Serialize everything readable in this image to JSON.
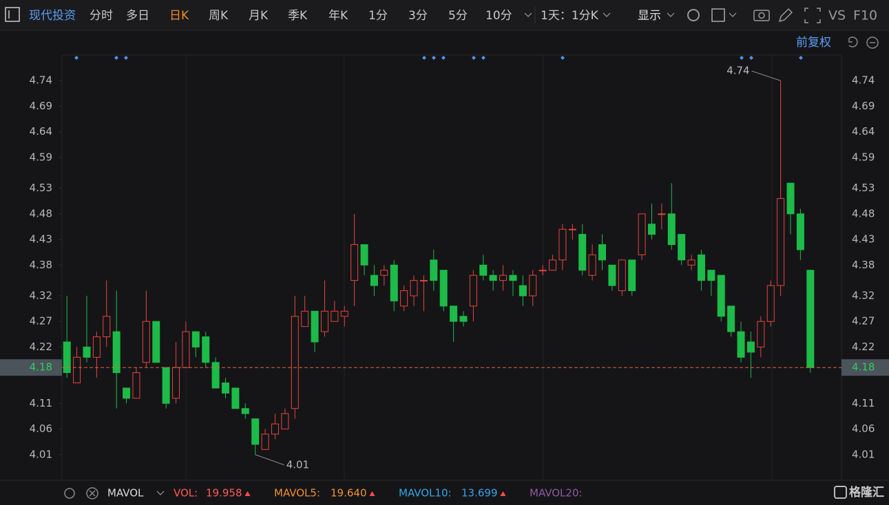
{
  "toolbar": {
    "stock": "现代投资",
    "periods": [
      "分时",
      "多日",
      "日K",
      "周K",
      "月K",
      "季K",
      "年K",
      "1分",
      "3分",
      "5分",
      "10分"
    ],
    "interval": "1天：1分K",
    "display": "显示",
    "vs": "VS",
    "f10": "F10"
  },
  "adjust": "前复权",
  "chart_data": {
    "type": "candlestick",
    "open": [
      4.23,
      4.15,
      4.22,
      4.2,
      4.24,
      4.25,
      4.14,
      4.12,
      4.19,
      4.27,
      4.18,
      4.12,
      4.18,
      4.25,
      4.24,
      4.19,
      4.15,
      4.14,
      4.1,
      4.08,
      4.02,
      4.05,
      4.06,
      4.1,
      4.26,
      4.29,
      4.25,
      4.27,
      4.28,
      4.35,
      4.42,
      4.36,
      4.36,
      4.38,
      4.3,
      4.32,
      4.35,
      4.39,
      4.37,
      4.3,
      4.28,
      4.3,
      4.38,
      4.36,
      4.35,
      4.36,
      4.34,
      4.32,
      4.37,
      4.37,
      4.39,
      4.45,
      4.44,
      4.36,
      4.42,
      4.38,
      4.33,
      4.39,
      4.4,
      4.46,
      4.48,
      4.48,
      4.44,
      4.38,
      4.4,
      4.37,
      4.36,
      4.3,
      4.25,
      4.23,
      4.22,
      4.27,
      4.34,
      4.54,
      4.48,
      4.37
    ],
    "high": [
      4.32,
      4.22,
      4.32,
      4.25,
      4.35,
      4.33,
      4.14,
      4.18,
      4.33,
      4.27,
      4.18,
      4.23,
      4.27,
      4.25,
      4.25,
      4.2,
      4.16,
      4.14,
      4.11,
      4.08,
      4.06,
      4.09,
      4.1,
      4.32,
      4.32,
      4.29,
      4.35,
      4.31,
      4.3,
      4.48,
      4.42,
      4.38,
      4.38,
      4.39,
      4.34,
      4.36,
      4.36,
      4.41,
      4.37,
      4.3,
      4.29,
      4.37,
      4.4,
      4.37,
      4.38,
      4.37,
      4.36,
      4.37,
      4.38,
      4.4,
      4.46,
      4.46,
      4.46,
      4.42,
      4.44,
      4.38,
      4.39,
      4.39,
      4.48,
      4.5,
      4.5,
      4.54,
      4.44,
      4.4,
      4.41,
      4.37,
      4.36,
      4.3,
      4.27,
      4.25,
      4.28,
      4.35,
      4.74,
      4.54,
      4.49,
      4.37
    ],
    "low": [
      4.16,
      4.15,
      4.19,
      4.16,
      4.22,
      4.1,
      4.11,
      4.12,
      4.18,
      4.19,
      4.1,
      4.11,
      4.18,
      4.2,
      4.18,
      4.14,
      4.12,
      4.1,
      4.08,
      4.01,
      4.02,
      4.04,
      4.06,
      4.08,
      4.26,
      4.21,
      4.24,
      4.27,
      4.26,
      4.3,
      4.36,
      4.32,
      4.34,
      4.29,
      4.29,
      4.3,
      4.29,
      4.33,
      4.29,
      4.23,
      4.26,
      4.27,
      4.35,
      4.33,
      4.33,
      4.32,
      4.3,
      4.3,
      4.36,
      4.37,
      4.37,
      4.43,
      4.36,
      4.35,
      4.37,
      4.33,
      4.32,
      4.32,
      4.39,
      4.43,
      4.45,
      4.41,
      4.38,
      4.37,
      4.33,
      4.32,
      4.27,
      4.24,
      4.19,
      4.16,
      4.2,
      4.26,
      4.32,
      4.44,
      4.39,
      4.17
    ],
    "close": [
      4.17,
      4.2,
      4.2,
      4.24,
      4.28,
      4.17,
      4.12,
      4.17,
      4.27,
      4.19,
      4.11,
      4.18,
      4.25,
      4.22,
      4.19,
      4.14,
      4.13,
      4.1,
      4.09,
      4.03,
      4.05,
      4.07,
      4.09,
      4.28,
      4.29,
      4.23,
      4.29,
      4.29,
      4.29,
      4.42,
      4.38,
      4.34,
      4.37,
      4.31,
      4.33,
      4.35,
      4.35,
      4.35,
      4.3,
      4.27,
      4.27,
      4.36,
      4.36,
      4.35,
      4.36,
      4.35,
      4.32,
      4.36,
      4.37,
      4.39,
      4.45,
      4.45,
      4.37,
      4.4,
      4.39,
      4.34,
      4.39,
      4.33,
      4.48,
      4.44,
      4.48,
      4.42,
      4.39,
      4.39,
      4.35,
      4.35,
      4.28,
      4.25,
      4.2,
      4.21,
      4.27,
      4.34,
      4.51,
      4.48,
      4.41,
      4.18
    ],
    "up_color": "#e8453c",
    "down_color": "#1dbb48",
    "ylim": [
      3.96,
      4.79
    ],
    "yticks": [
      4.01,
      4.06,
      4.11,
      4.22,
      4.27,
      4.32,
      4.38,
      4.43,
      4.48,
      4.53,
      4.59,
      4.64,
      4.69,
      4.74
    ],
    "last_price": 4.18,
    "max_label": 4.74,
    "min_label": 4.01
  },
  "indicator": {
    "name": "MAVOL",
    "items": [
      {
        "name": "VOL:",
        "value": "19.958",
        "color": "#ff5a52"
      },
      {
        "name": "MAVOL5:",
        "value": "19.640",
        "color": "#f2912e"
      },
      {
        "name": "MAVOL10:",
        "value": "13.699",
        "color": "#34a6e6"
      },
      {
        "name": "MAVOL20:",
        "color": "#8e5aa0"
      }
    ]
  },
  "watermark": "格隆汇"
}
